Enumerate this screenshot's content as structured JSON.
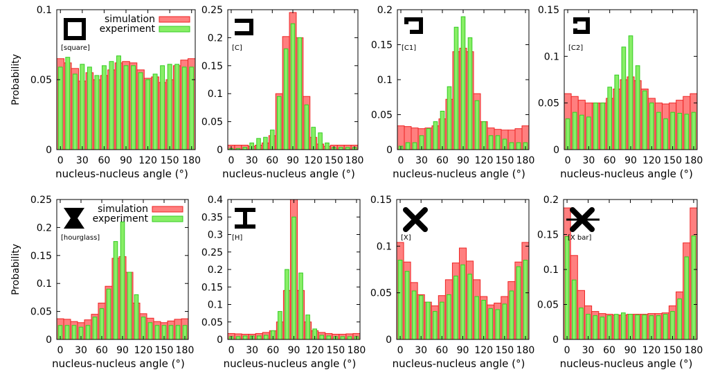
{
  "y_axis_label": "Probability",
  "legend": {
    "simulation_label": "simulation",
    "experiment_label": "experiment"
  },
  "colors": {
    "simulation_fill": "#ff7f7f",
    "simulation_stroke": "#ee2222",
    "experiment_fill": "#88ee66",
    "experiment_stroke": "#33cc22"
  },
  "chart_data": [
    {
      "type": "bar",
      "shape": "square-icon",
      "shape_label": "[square]",
      "xlabel": "nucleus-nucleus angle (°)",
      "xticks": [
        0,
        30,
        60,
        90,
        120,
        150,
        180
      ],
      "yticks": [
        "0",
        "0.05",
        "0.1"
      ],
      "ylim": [
        0,
        0.1
      ],
      "xlim": [
        -5,
        185
      ],
      "bin_width": 10,
      "x": [
        0,
        10,
        20,
        30,
        40,
        50,
        60,
        70,
        80,
        90,
        100,
        110,
        120,
        130,
        140,
        150,
        160,
        170,
        180
      ],
      "series": [
        {
          "name": "simulation",
          "values": [
            0.065,
            0.062,
            0.058,
            0.049,
            0.055,
            0.05,
            0.053,
            0.057,
            0.062,
            0.063,
            0.062,
            0.057,
            0.051,
            0.052,
            0.048,
            0.05,
            0.06,
            0.064,
            0.065
          ]
        },
        {
          "name": "experiment",
          "values": [
            0.059,
            0.066,
            0.054,
            0.061,
            0.059,
            0.053,
            0.06,
            0.063,
            0.067,
            0.06,
            0.06,
            0.055,
            0.05,
            0.054,
            0.06,
            0.061,
            0.061,
            0.059,
            0.059
          ]
        }
      ]
    },
    {
      "type": "bar",
      "shape": "c-shape-icon",
      "shape_label": "[C]",
      "xlabel": "nucleus-nucleus angle (°)",
      "xticks": [
        0,
        30,
        60,
        90,
        120,
        150,
        180
      ],
      "yticks": [
        "0",
        "0.05",
        "0.1",
        "0.15",
        "0.2",
        "0.25"
      ],
      "ylim": [
        0,
        0.25
      ],
      "xlim": [
        -5,
        185
      ],
      "bin_width": 10,
      "x": [
        0,
        10,
        20,
        30,
        40,
        50,
        60,
        70,
        80,
        90,
        100,
        110,
        120,
        130,
        140,
        150,
        160,
        170,
        180
      ],
      "series": [
        {
          "name": "simulation",
          "values": [
            0.008,
            0.008,
            0.008,
            0.006,
            0.008,
            0.012,
            0.025,
            0.1,
            0.202,
            0.245,
            0.2,
            0.095,
            0.022,
            0.01,
            0.006,
            0.008,
            0.008,
            0.008,
            0.008
          ]
        },
        {
          "name": "experiment",
          "values": [
            0.002,
            0.002,
            0.004,
            0.012,
            0.02,
            0.022,
            0.035,
            0.095,
            0.18,
            0.225,
            0.2,
            0.08,
            0.04,
            0.03,
            0.012,
            0.004,
            0.004,
            0.004,
            0.004
          ]
        }
      ]
    },
    {
      "type": "bar",
      "shape": "c1-shape-icon",
      "shape_label": "[C1]",
      "xlabel": "nucleus-nucleus angle (°)",
      "xticks": [
        0,
        30,
        60,
        90,
        120,
        150,
        180
      ],
      "yticks": [
        "0",
        "0.05",
        "0.1",
        "0.15",
        "0.2"
      ],
      "ylim": [
        0,
        0.2
      ],
      "xlim": [
        -5,
        185
      ],
      "bin_width": 10,
      "x": [
        0,
        10,
        20,
        30,
        40,
        50,
        60,
        70,
        80,
        90,
        100,
        110,
        120,
        130,
        140,
        150,
        160,
        170,
        180
      ],
      "series": [
        {
          "name": "simulation",
          "values": [
            0.034,
            0.033,
            0.031,
            0.03,
            0.031,
            0.034,
            0.044,
            0.072,
            0.14,
            0.145,
            0.14,
            0.08,
            0.04,
            0.031,
            0.029,
            0.028,
            0.028,
            0.03,
            0.034
          ]
        },
        {
          "name": "experiment",
          "values": [
            0.005,
            0.01,
            0.01,
            0.02,
            0.03,
            0.04,
            0.055,
            0.09,
            0.175,
            0.19,
            0.16,
            0.07,
            0.04,
            0.02,
            0.02,
            0.015,
            0.01,
            0.01,
            0.01
          ]
        }
      ]
    },
    {
      "type": "bar",
      "shape": "c2-shape-icon",
      "shape_label": "[C2]",
      "xlabel": "nucleus-nucleus angle (°)",
      "xticks": [
        0,
        30,
        60,
        90,
        120,
        150,
        180
      ],
      "yticks": [
        "0",
        "0.05",
        "0.1",
        "0.15"
      ],
      "ylim": [
        0,
        0.15
      ],
      "xlim": [
        -5,
        185
      ],
      "bin_width": 10,
      "x": [
        0,
        10,
        20,
        30,
        40,
        50,
        60,
        70,
        80,
        90,
        100,
        110,
        120,
        130,
        140,
        150,
        160,
        170,
        180
      ],
      "series": [
        {
          "name": "simulation",
          "values": [
            0.06,
            0.057,
            0.053,
            0.05,
            0.05,
            0.05,
            0.055,
            0.065,
            0.075,
            0.078,
            0.074,
            0.065,
            0.055,
            0.05,
            0.049,
            0.05,
            0.053,
            0.057,
            0.06
          ]
        },
        {
          "name": "experiment",
          "values": [
            0.033,
            0.04,
            0.037,
            0.035,
            0.05,
            0.05,
            0.067,
            0.08,
            0.11,
            0.122,
            0.09,
            0.063,
            0.05,
            0.04,
            0.033,
            0.04,
            0.039,
            0.038,
            0.04
          ]
        }
      ]
    },
    {
      "type": "bar",
      "shape": "hourglass-icon",
      "shape_label": "[hourglass]",
      "xlabel": "nucleus-nucleus angle (°)",
      "xticks": [
        0,
        30,
        60,
        90,
        120,
        150,
        180
      ],
      "yticks": [
        "0",
        "0.05",
        "0.1",
        "0.15",
        "0.2",
        "0.25"
      ],
      "ylim": [
        0,
        0.25
      ],
      "xlim": [
        -5,
        185
      ],
      "bin_width": 10,
      "x": [
        0,
        10,
        20,
        30,
        40,
        50,
        60,
        70,
        80,
        90,
        100,
        110,
        120,
        130,
        140,
        150,
        160,
        170,
        180
      ],
      "series": [
        {
          "name": "simulation",
          "values": [
            0.037,
            0.036,
            0.032,
            0.03,
            0.035,
            0.045,
            0.065,
            0.095,
            0.145,
            0.148,
            0.12,
            0.065,
            0.046,
            0.038,
            0.032,
            0.03,
            0.033,
            0.036,
            0.037
          ]
        },
        {
          "name": "experiment",
          "values": [
            0.025,
            0.025,
            0.025,
            0.022,
            0.025,
            0.04,
            0.055,
            0.09,
            0.175,
            0.21,
            0.12,
            0.08,
            0.04,
            0.03,
            0.025,
            0.025,
            0.025,
            0.025,
            0.025
          ]
        }
      ]
    },
    {
      "type": "bar",
      "shape": "h-shape-icon",
      "shape_label": "[H]",
      "xlabel": "nucleus-nucleus angle (°)",
      "xticks": [
        0,
        30,
        60,
        90,
        120,
        150,
        180
      ],
      "yticks": [
        "0",
        "0.05",
        "0.1",
        "0.15",
        "0.2",
        "0.25",
        "0.3",
        "0.35",
        "0.4"
      ],
      "ylim": [
        0,
        0.4
      ],
      "xlim": [
        -5,
        185
      ],
      "bin_width": 10,
      "x": [
        0,
        10,
        20,
        30,
        40,
        50,
        60,
        70,
        80,
        90,
        100,
        110,
        120,
        130,
        140,
        150,
        160,
        170,
        180
      ],
      "series": [
        {
          "name": "simulation",
          "values": [
            0.017,
            0.016,
            0.015,
            0.015,
            0.017,
            0.02,
            0.025,
            0.05,
            0.14,
            0.4,
            0.14,
            0.05,
            0.025,
            0.02,
            0.017,
            0.015,
            0.015,
            0.016,
            0.017
          ]
        },
        {
          "name": "experiment",
          "values": [
            0.008,
            0.008,
            0.01,
            0.01,
            0.01,
            0.012,
            0.025,
            0.08,
            0.2,
            0.35,
            0.19,
            0.07,
            0.03,
            0.012,
            0.01,
            0.008,
            0.008,
            0.008,
            0.008
          ]
        }
      ]
    },
    {
      "type": "bar",
      "shape": "x-shape-icon",
      "shape_label": "[X]",
      "xlabel": "nucleus-nucleus angle (°)",
      "xticks": [
        0,
        30,
        60,
        90,
        120,
        150,
        180
      ],
      "yticks": [
        "0",
        "0.05",
        "0.1",
        "0.15"
      ],
      "ylim": [
        0,
        0.15
      ],
      "xlim": [
        -5,
        185
      ],
      "bin_width": 10,
      "x": [
        0,
        10,
        20,
        30,
        40,
        50,
        60,
        70,
        80,
        90,
        100,
        110,
        120,
        130,
        140,
        150,
        160,
        170,
        180
      ],
      "series": [
        {
          "name": "simulation",
          "values": [
            0.104,
            0.083,
            0.061,
            0.048,
            0.04,
            0.036,
            0.047,
            0.064,
            0.082,
            0.098,
            0.084,
            0.064,
            0.046,
            0.037,
            0.039,
            0.046,
            0.062,
            0.083,
            0.104
          ]
        },
        {
          "name": "experiment",
          "values": [
            0.085,
            0.073,
            0.052,
            0.047,
            0.04,
            0.03,
            0.04,
            0.048,
            0.068,
            0.08,
            0.07,
            0.046,
            0.042,
            0.033,
            0.032,
            0.038,
            0.052,
            0.078,
            0.085
          ]
        }
      ]
    },
    {
      "type": "bar",
      "shape": "x-bar-shape-icon",
      "shape_label": "[X bar]",
      "xlabel": "nucleus-nucleus angle (°)",
      "xticks": [
        0,
        30,
        60,
        90,
        120,
        150,
        180
      ],
      "yticks": [
        "0",
        "0.05",
        "0.1",
        "0.15",
        "0.2"
      ],
      "ylim": [
        0,
        0.2
      ],
      "xlim": [
        -5,
        185
      ],
      "bin_width": 10,
      "x": [
        0,
        10,
        20,
        30,
        40,
        50,
        60,
        70,
        80,
        90,
        100,
        110,
        120,
        130,
        140,
        150,
        160,
        170,
        180
      ],
      "series": [
        {
          "name": "simulation",
          "values": [
            0.188,
            0.12,
            0.07,
            0.048,
            0.04,
            0.037,
            0.036,
            0.035,
            0.035,
            0.036,
            0.036,
            0.036,
            0.037,
            0.037,
            0.038,
            0.048,
            0.068,
            0.138,
            0.188
          ]
        },
        {
          "name": "experiment",
          "values": [
            0.147,
            0.085,
            0.045,
            0.036,
            0.034,
            0.032,
            0.034,
            0.036,
            0.038,
            0.036,
            0.035,
            0.035,
            0.034,
            0.034,
            0.036,
            0.04,
            0.058,
            0.118,
            0.148
          ]
        }
      ]
    }
  ]
}
